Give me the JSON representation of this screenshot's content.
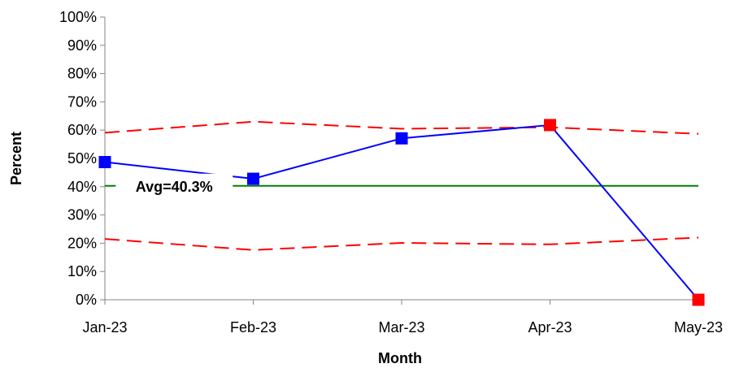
{
  "chart_data": {
    "type": "line",
    "title": "",
    "xlabel": "Month",
    "ylabel": "Percent",
    "categories": [
      "Jan-23",
      "Feb-23",
      "Mar-23",
      "Apr-23",
      "May-23"
    ],
    "ylim": [
      0,
      100
    ],
    "y_ticks": [
      0,
      10,
      20,
      30,
      40,
      50,
      60,
      70,
      80,
      90,
      100
    ],
    "y_tick_labels": [
      "0%",
      "10%",
      "20%",
      "30%",
      "40%",
      "50%",
      "60%",
      "70%",
      "80%",
      "90%",
      "100%"
    ],
    "grid": false,
    "legend": "none",
    "series": [
      {
        "role": "data",
        "values": [
          48.7,
          42.8,
          57.1,
          61.8,
          0.0
        ],
        "color": "#0000ff",
        "marker_colors": [
          "#0000ff",
          "#0000ff",
          "#0000ff",
          "#ff0000",
          "#ff0000"
        ],
        "style": "solid",
        "marker": "square"
      },
      {
        "role": "average",
        "values": [
          40.3,
          40.3,
          40.3,
          40.3,
          40.3
        ],
        "color": "#008000",
        "style": "solid"
      },
      {
        "role": "upper-limit",
        "values": [
          59.1,
          63.0,
          60.5,
          61.0,
          58.7
        ],
        "color": "#ff0000",
        "style": "dashed"
      },
      {
        "role": "lower-limit",
        "values": [
          21.5,
          17.6,
          20.1,
          19.6,
          22.0
        ],
        "color": "#ff0000",
        "style": "dashed"
      }
    ],
    "annotations": [
      {
        "text": "Avg=40.3%",
        "x_between": [
          "Jan-23",
          "Feb-23"
        ],
        "y": 40.3
      }
    ]
  }
}
